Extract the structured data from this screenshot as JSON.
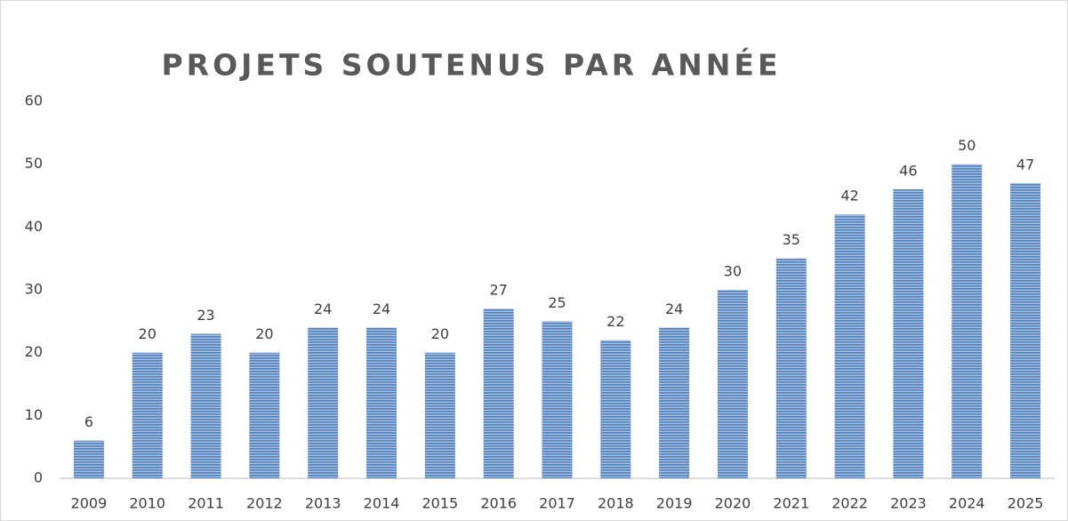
{
  "chart_data": {
    "type": "bar",
    "title": "PROJETS SOUTENUS PAR ANNÉE",
    "categories": [
      "2009",
      "2010",
      "2011",
      "2012",
      "2013",
      "2014",
      "2015",
      "2016",
      "2017",
      "2018",
      "2019",
      "2020",
      "2021",
      "2022",
      "2023",
      "2024",
      "2025"
    ],
    "values": [
      6,
      20,
      23,
      20,
      24,
      24,
      20,
      27,
      25,
      22,
      24,
      30,
      35,
      42,
      46,
      50,
      47
    ],
    "color": "#4f81bd",
    "ylim": [
      0,
      60
    ],
    "yticks": [
      0,
      10,
      20,
      30,
      40,
      50,
      60
    ],
    "grid": false
  }
}
